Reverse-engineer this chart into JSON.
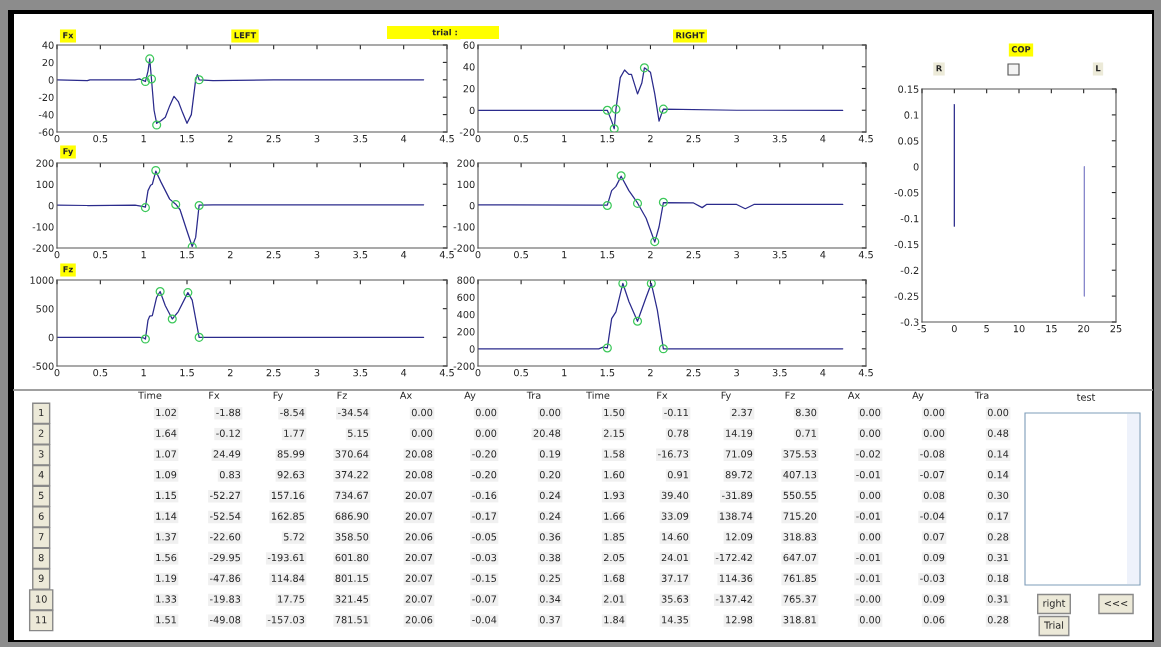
{
  "chart_data": [
    {
      "type": "line",
      "title": "Fx",
      "annotations": [
        "LEFT",
        "trial :"
      ],
      "xlim": [
        0,
        4.5
      ],
      "ylim": [
        -60,
        40
      ],
      "xticks": [
        0,
        0.5,
        1,
        1.5,
        2,
        2.5,
        3,
        3.5,
        4,
        4.5
      ],
      "yticks": [
        -60,
        -40,
        -20,
        0,
        20,
        40
      ],
      "series": [
        {
          "type": "line",
          "color": "#2b2b8c",
          "x": [
            0,
            0.35,
            0.38,
            0.9,
            0.95,
            1.0,
            1.02,
            1.05,
            1.07,
            1.09,
            1.12,
            1.15,
            1.2,
            1.25,
            1.3,
            1.35,
            1.4,
            1.45,
            1.5,
            1.55,
            1.6,
            1.62,
            1.64,
            1.8,
            2.5,
            3.6,
            4.23
          ],
          "values": [
            0,
            -1,
            0,
            0,
            1,
            -1,
            -2,
            10,
            24,
            1,
            -35,
            -50,
            -47,
            -43,
            -30,
            -19,
            -25,
            -38,
            -50,
            -40,
            0,
            6,
            0,
            -1,
            0,
            0,
            0
          ]
        },
        {
          "type": "scatter",
          "marker": "circle",
          "color": "#3cc85a",
          "x": [
            1.02,
            1.07,
            1.09,
            1.15,
            1.64
          ],
          "values": [
            -2,
            24,
            1,
            -52,
            0
          ]
        }
      ]
    },
    {
      "type": "line",
      "annotations": [
        "RIGHT"
      ],
      "xlim": [
        0,
        4.5
      ],
      "ylim": [
        -20,
        60
      ],
      "xticks": [
        0,
        0.5,
        1,
        1.5,
        2,
        2.5,
        3,
        3.5,
        4,
        4.5
      ],
      "yticks": [
        -20,
        0,
        20,
        40,
        60
      ],
      "series": [
        {
          "type": "line",
          "color": "#2b2b8c",
          "x": [
            0,
            1.4,
            1.5,
            1.55,
            1.58,
            1.6,
            1.65,
            1.7,
            1.75,
            1.78,
            1.85,
            1.9,
            1.93,
            2.0,
            2.05,
            2.1,
            2.13,
            2.15,
            3.0,
            4.23
          ],
          "values": [
            0,
            0,
            0,
            -10,
            -17,
            1,
            30,
            37,
            33,
            33,
            15,
            25,
            39,
            35,
            15,
            -10,
            -3,
            1,
            0,
            0
          ]
        },
        {
          "type": "scatter",
          "marker": "circle",
          "color": "#3cc85a",
          "x": [
            1.5,
            1.58,
            1.6,
            1.93,
            2.15
          ],
          "values": [
            0,
            -17,
            1,
            39,
            1
          ]
        }
      ]
    },
    {
      "type": "line",
      "title": "Fy",
      "xlim": [
        0,
        4.5
      ],
      "ylim": [
        -200,
        200
      ],
      "xticks": [
        0,
        0.5,
        1,
        1.5,
        2,
        2.5,
        3,
        3.5,
        4,
        4.5
      ],
      "yticks": [
        -200,
        -100,
        0,
        100,
        200
      ],
      "series": [
        {
          "type": "line",
          "color": "#2b2b8c",
          "x": [
            0,
            0.35,
            0.9,
            1.0,
            1.02,
            1.05,
            1.08,
            1.1,
            1.14,
            1.2,
            1.3,
            1.37,
            1.42,
            1.5,
            1.56,
            1.6,
            1.64,
            1.8,
            2.5,
            4.23
          ],
          "values": [
            2,
            0,
            2,
            -5,
            -8,
            70,
            95,
            100,
            162,
            110,
            30,
            6,
            -20,
            -120,
            -193,
            -150,
            2,
            3,
            3,
            3
          ]
        },
        {
          "type": "scatter",
          "marker": "circle",
          "color": "#3cc85a",
          "x": [
            1.02,
            1.14,
            1.37,
            1.56,
            1.64
          ],
          "values": [
            -10,
            165,
            5,
            -195,
            0
          ]
        }
      ]
    },
    {
      "type": "line",
      "xlim": [
        0,
        4.5
      ],
      "ylim": [
        -200,
        200
      ],
      "xticks": [
        0,
        0.5,
        1,
        1.5,
        2,
        2.5,
        3,
        3.5,
        4,
        4.5
      ],
      "yticks": [
        -200,
        -100,
        0,
        100,
        200
      ],
      "series": [
        {
          "type": "line",
          "color": "#2b2b8c",
          "x": [
            0,
            1.4,
            1.5,
            1.55,
            1.6,
            1.66,
            1.75,
            1.85,
            1.95,
            2.05,
            2.1,
            2.15,
            2.5,
            2.6,
            2.65,
            3.0,
            3.1,
            3.2,
            4.23
          ],
          "values": [
            3,
            2,
            2,
            70,
            90,
            138,
            70,
            12,
            -60,
            -172,
            -100,
            14,
            12,
            -10,
            5,
            5,
            -15,
            5,
            5
          ]
        },
        {
          "type": "scatter",
          "marker": "circle",
          "color": "#3cc85a",
          "x": [
            1.5,
            1.66,
            1.85,
            2.05,
            2.15
          ],
          "values": [
            0,
            140,
            10,
            -170,
            15
          ]
        }
      ]
    },
    {
      "type": "line",
      "title": "Fz",
      "xlim": [
        0,
        4.5
      ],
      "ylim": [
        -500,
        1000
      ],
      "xticks": [
        0,
        0.5,
        1,
        1.5,
        2,
        2.5,
        3,
        3.5,
        4,
        4.5
      ],
      "yticks": [
        -500,
        0,
        500,
        1000
      ],
      "series": [
        {
          "type": "line",
          "color": "#2b2b8c",
          "x": [
            0,
            0.85,
            0.95,
            1.0,
            1.02,
            1.05,
            1.07,
            1.1,
            1.15,
            1.19,
            1.25,
            1.33,
            1.4,
            1.51,
            1.56,
            1.64,
            4.23
          ],
          "values": [
            0,
            0,
            0,
            -10,
            -30,
            300,
            370,
            380,
            700,
            800,
            550,
            320,
            450,
            780,
            650,
            0,
            0
          ]
        },
        {
          "type": "scatter",
          "marker": "circle",
          "color": "#3cc85a",
          "x": [
            1.02,
            1.19,
            1.33,
            1.51,
            1.64
          ],
          "values": [
            -30,
            800,
            320,
            780,
            0
          ]
        }
      ]
    },
    {
      "type": "line",
      "xlim": [
        0,
        4.5
      ],
      "ylim": [
        -200,
        800
      ],
      "xticks": [
        0,
        0.5,
        1,
        1.5,
        2,
        2.5,
        3,
        3.5,
        4,
        4.5
      ],
      "yticks": [
        -200,
        0,
        200,
        400,
        600,
        800
      ],
      "series": [
        {
          "type": "line",
          "color": "#2b2b8c",
          "x": [
            0,
            1.4,
            1.45,
            1.5,
            1.55,
            1.6,
            1.68,
            1.75,
            1.85,
            1.95,
            2.01,
            2.08,
            2.15,
            4.23
          ],
          "values": [
            0,
            0,
            20,
            10,
            350,
            430,
            760,
            550,
            320,
            600,
            760,
            450,
            0,
            0
          ]
        },
        {
          "type": "scatter",
          "marker": "circle",
          "color": "#3cc85a",
          "x": [
            1.5,
            1.68,
            1.85,
            2.01,
            2.15
          ],
          "values": [
            10,
            760,
            320,
            760,
            0
          ]
        }
      ]
    },
    {
      "type": "line",
      "title": "COP",
      "annotations": [
        "R",
        "L"
      ],
      "xlim": [
        -5,
        25
      ],
      "ylim": [
        -0.3,
        0.15
      ],
      "xticks": [
        -5,
        0,
        5,
        10,
        15,
        20,
        25
      ],
      "yticks": [
        -0.3,
        -0.25,
        -0.2,
        -0.15,
        -0.1,
        -0.05,
        0,
        0.05,
        0.1,
        0.15
      ],
      "series": [
        {
          "type": "line",
          "color": "#2b2b8c",
          "x": [
            0,
            0
          ],
          "values": [
            0.12,
            -0.115
          ]
        },
        {
          "type": "line",
          "color": "#8080c8",
          "x": [
            20.1,
            20.1
          ],
          "values": [
            0,
            -0.25
          ]
        }
      ]
    },
    {
      "type": "other",
      "annotations": [
        "test",
        "right",
        "<<<",
        "Trial"
      ],
      "categories": [
        "Time",
        "Fx",
        "Fy",
        "Fz",
        "Ax",
        "Ay",
        "Tra",
        "Time",
        "Fx",
        "Fy",
        "Fz",
        "Ax",
        "Ay",
        "Tra"
      ],
      "y_categories": [
        "1",
        "2",
        "3",
        "4",
        "5",
        "6",
        "7",
        "8",
        "9",
        "10",
        "11"
      ],
      "cell_labels": [
        [
          "1.02",
          "-1.88",
          "-8.54",
          "-34.54",
          "0.00",
          "0.00",
          "0.00",
          "1.50",
          "-0.11",
          "2.37",
          "8.30",
          "0.00",
          "0.00",
          "0.00"
        ],
        [
          "1.64",
          "-0.12",
          "1.77",
          "5.15",
          "0.00",
          "0.00",
          "20.48",
          "2.15",
          "0.78",
          "14.19",
          "0.71",
          "0.00",
          "0.00",
          "0.48"
        ],
        [
          "1.07",
          "24.49",
          "85.99",
          "370.64",
          "20.08",
          "-0.20",
          "0.19",
          "1.58",
          "-16.73",
          "71.09",
          "375.53",
          "-0.02",
          "-0.08",
          "0.14"
        ],
        [
          "1.09",
          "0.83",
          "92.63",
          "374.22",
          "20.08",
          "-0.20",
          "0.20",
          "1.60",
          "0.91",
          "89.72",
          "407.13",
          "-0.01",
          "-0.07",
          "0.14"
        ],
        [
          "1.15",
          "-52.27",
          "157.16",
          "734.67",
          "20.07",
          "-0.16",
          "0.24",
          "1.93",
          "39.40",
          "-31.89",
          "550.55",
          "0.00",
          "0.08",
          "0.30"
        ],
        [
          "1.14",
          "-52.54",
          "162.85",
          "686.90",
          "20.07",
          "-0.17",
          "0.24",
          "1.66",
          "33.09",
          "138.74",
          "715.20",
          "-0.01",
          "-0.04",
          "0.17"
        ],
        [
          "1.37",
          "-22.60",
          "5.72",
          "358.50",
          "20.06",
          "-0.05",
          "0.36",
          "1.85",
          "14.60",
          "12.09",
          "318.83",
          "0.00",
          "0.07",
          "0.28"
        ],
        [
          "1.56",
          "-29.95",
          "-193.61",
          "601.80",
          "20.07",
          "-0.03",
          "0.38",
          "2.05",
          "24.01",
          "-172.42",
          "647.07",
          "-0.01",
          "0.09",
          "0.31"
        ],
        [
          "1.19",
          "-47.86",
          "114.84",
          "801.15",
          "20.07",
          "-0.15",
          "0.25",
          "1.68",
          "37.17",
          "114.36",
          "761.85",
          "-0.01",
          "-0.03",
          "0.18"
        ],
        [
          "1.33",
          "-19.83",
          "17.75",
          "321.45",
          "20.07",
          "-0.07",
          "0.34",
          "2.01",
          "35.63",
          "-137.42",
          "765.37",
          "-0.00",
          "0.09",
          "0.31"
        ],
        [
          "1.51",
          "-49.08",
          "-157.03",
          "781.51",
          "20.06",
          "-0.04",
          "0.37",
          "1.84",
          "14.35",
          "12.98",
          "318.81",
          "0.00",
          "0.06",
          "0.28"
        ]
      ]
    }
  ]
}
